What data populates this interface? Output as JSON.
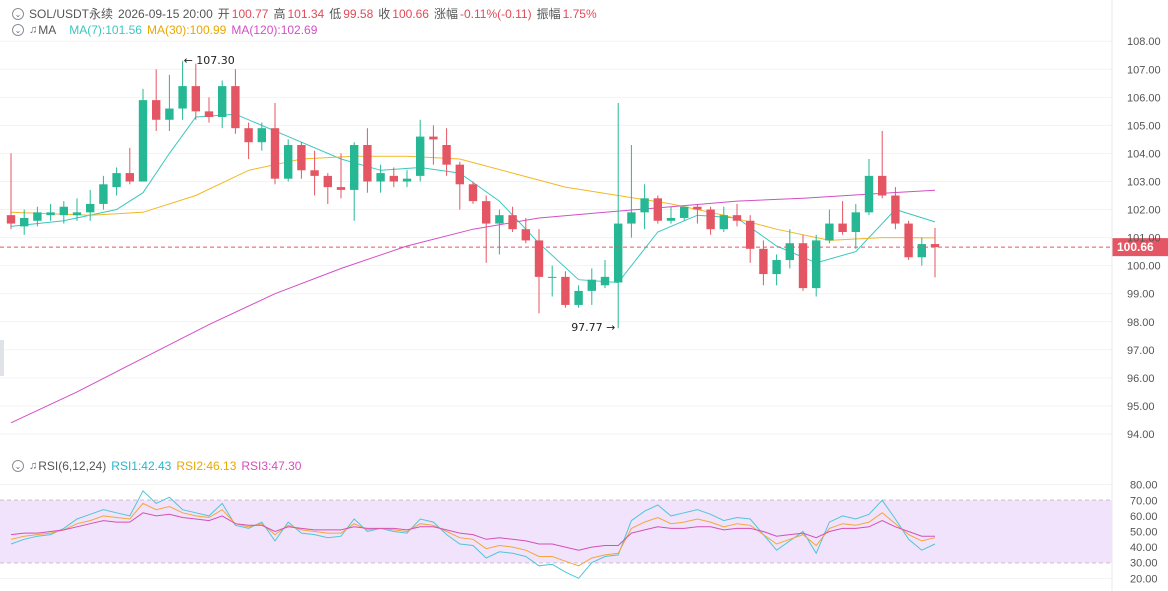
{
  "header": {
    "symbol": "SOL/USDT永续",
    "datetime": "2026-09-15 20:00",
    "open_label": "开",
    "open": "100.77",
    "high_label": "高",
    "high": "101.34",
    "low_label": "低",
    "low": "99.58",
    "close_label": "收",
    "close": "100.66",
    "change_label": "涨幅",
    "change": "-0.11%(-0.11)",
    "amplitude_label": "振幅",
    "amplitude": "1.75%"
  },
  "ma_legend": {
    "label": "MA",
    "ma7": "MA(7):101.56",
    "ma30": "MA(30):100.99",
    "ma120": "MA(120):102.69"
  },
  "rsi_legend": {
    "label": "RSI(6,12,24)",
    "rsi1": "RSI1:42.43",
    "rsi2": "RSI2:46.13",
    "rsi3": "RSI3:47.30"
  },
  "colors": {
    "up": "#26b894",
    "down": "#e45663",
    "ma7": "#3cc6c0",
    "ma30": "#f2b824",
    "ma120": "#d34fc6",
    "rsi1": "#4fc6d6",
    "rsi2": "#f2a63c",
    "rsi3": "#d54fb8",
    "rsi_band": "#f1e3fb"
  },
  "chart_data": [
    {
      "type": "candlestick",
      "title": "SOL/USDT永续",
      "ylim": [
        93.5,
        108.4
      ],
      "yticks": [
        94,
        95,
        96,
        97,
        98,
        99,
        100,
        101,
        102,
        103,
        104,
        105,
        106,
        107,
        108
      ],
      "ytick_labels": [
        "94.00",
        "95.00",
        "96.00",
        "97.00",
        "98.00",
        "99.00",
        "100.00",
        "101.00",
        "102.00",
        "103.00",
        "104.00",
        "105.00",
        "106.00",
        "107.00",
        "108.00"
      ],
      "last_price": 100.66,
      "last_price_label": "100.66",
      "annotations": [
        {
          "text": "← 107.30",
          "value": 107.3,
          "candle": 13
        },
        {
          "text": "97.77 →",
          "value": 97.77,
          "candle": 46
        }
      ],
      "candles": [
        {
          "o": 101.8,
          "h": 104.0,
          "l": 101.3,
          "c": 101.5
        },
        {
          "o": 101.4,
          "h": 102.0,
          "l": 101.1,
          "c": 101.7
        },
        {
          "o": 101.6,
          "h": 102.1,
          "l": 101.4,
          "c": 101.9
        },
        {
          "o": 101.8,
          "h": 102.2,
          "l": 101.6,
          "c": 101.9
        },
        {
          "o": 101.8,
          "h": 102.3,
          "l": 101.5,
          "c": 102.1
        },
        {
          "o": 101.8,
          "h": 102.4,
          "l": 101.6,
          "c": 101.9
        },
        {
          "o": 101.9,
          "h": 102.7,
          "l": 101.6,
          "c": 102.2
        },
        {
          "o": 102.2,
          "h": 103.2,
          "l": 102.0,
          "c": 102.9
        },
        {
          "o": 102.8,
          "h": 103.5,
          "l": 102.5,
          "c": 103.3
        },
        {
          "o": 103.3,
          "h": 104.2,
          "l": 102.9,
          "c": 103.0
        },
        {
          "o": 103.0,
          "h": 106.3,
          "l": 103.0,
          "c": 105.9
        },
        {
          "o": 105.9,
          "h": 107.0,
          "l": 104.8,
          "c": 105.2
        },
        {
          "o": 105.2,
          "h": 106.8,
          "l": 104.8,
          "c": 105.6
        },
        {
          "o": 105.6,
          "h": 107.3,
          "l": 105.2,
          "c": 106.4
        },
        {
          "o": 106.4,
          "h": 107.2,
          "l": 105.2,
          "c": 105.5
        },
        {
          "o": 105.5,
          "h": 106.0,
          "l": 105.1,
          "c": 105.3
        },
        {
          "o": 105.3,
          "h": 106.6,
          "l": 104.9,
          "c": 106.4
        },
        {
          "o": 106.4,
          "h": 107.0,
          "l": 104.7,
          "c": 104.9
        },
        {
          "o": 104.9,
          "h": 105.1,
          "l": 103.8,
          "c": 104.4
        },
        {
          "o": 104.4,
          "h": 105.1,
          "l": 104.1,
          "c": 104.9
        },
        {
          "o": 104.9,
          "h": 105.8,
          "l": 102.9,
          "c": 103.1
        },
        {
          "o": 103.1,
          "h": 104.5,
          "l": 103.0,
          "c": 104.3
        },
        {
          "o": 104.3,
          "h": 104.4,
          "l": 103.1,
          "c": 103.4
        },
        {
          "o": 103.4,
          "h": 104.1,
          "l": 102.5,
          "c": 103.2
        },
        {
          "o": 103.2,
          "h": 103.3,
          "l": 102.2,
          "c": 102.8
        },
        {
          "o": 102.8,
          "h": 104.0,
          "l": 102.4,
          "c": 102.7
        },
        {
          "o": 102.7,
          "h": 104.4,
          "l": 101.6,
          "c": 104.3
        },
        {
          "o": 104.3,
          "h": 104.9,
          "l": 102.6,
          "c": 103.0
        },
        {
          "o": 103.0,
          "h": 103.6,
          "l": 102.6,
          "c": 103.3
        },
        {
          "o": 103.2,
          "h": 103.5,
          "l": 102.8,
          "c": 103.0
        },
        {
          "o": 103.0,
          "h": 103.4,
          "l": 102.8,
          "c": 103.1
        },
        {
          "o": 103.2,
          "h": 105.2,
          "l": 103.0,
          "c": 104.6
        },
        {
          "o": 104.6,
          "h": 105.0,
          "l": 103.6,
          "c": 104.5
        },
        {
          "o": 104.3,
          "h": 104.9,
          "l": 103.2,
          "c": 103.6
        },
        {
          "o": 103.6,
          "h": 103.7,
          "l": 102.0,
          "c": 102.9
        },
        {
          "o": 102.9,
          "h": 103.0,
          "l": 102.2,
          "c": 102.3
        },
        {
          "o": 102.3,
          "h": 102.5,
          "l": 100.1,
          "c": 101.5
        },
        {
          "o": 101.5,
          "h": 102.0,
          "l": 100.4,
          "c": 101.8
        },
        {
          "o": 101.8,
          "h": 102.1,
          "l": 101.2,
          "c": 101.3
        },
        {
          "o": 101.3,
          "h": 101.7,
          "l": 100.8,
          "c": 100.9
        },
        {
          "o": 100.9,
          "h": 101.3,
          "l": 98.3,
          "c": 99.6
        },
        {
          "o": 99.6,
          "h": 100.0,
          "l": 98.9,
          "c": 99.6
        },
        {
          "o": 99.6,
          "h": 99.8,
          "l": 98.5,
          "c": 98.6
        },
        {
          "o": 98.6,
          "h": 99.3,
          "l": 98.5,
          "c": 99.1
        },
        {
          "o": 99.1,
          "h": 99.9,
          "l": 98.6,
          "c": 99.5
        },
        {
          "o": 99.3,
          "h": 100.2,
          "l": 99.2,
          "c": 99.6
        },
        {
          "o": 99.4,
          "h": 105.8,
          "l": 97.77,
          "c": 101.5
        },
        {
          "o": 101.5,
          "h": 104.3,
          "l": 101.0,
          "c": 101.9
        },
        {
          "o": 101.9,
          "h": 102.9,
          "l": 101.3,
          "c": 102.4
        },
        {
          "o": 102.4,
          "h": 102.5,
          "l": 101.5,
          "c": 101.6
        },
        {
          "o": 101.6,
          "h": 102.1,
          "l": 101.5,
          "c": 101.7
        },
        {
          "o": 101.7,
          "h": 102.1,
          "l": 101.6,
          "c": 102.1
        },
        {
          "o": 102.1,
          "h": 102.2,
          "l": 101.5,
          "c": 102.0
        },
        {
          "o": 102.0,
          "h": 102.1,
          "l": 101.1,
          "c": 101.3
        },
        {
          "o": 101.3,
          "h": 102.1,
          "l": 101.2,
          "c": 101.8
        },
        {
          "o": 101.8,
          "h": 102.2,
          "l": 101.4,
          "c": 101.6
        },
        {
          "o": 101.6,
          "h": 101.8,
          "l": 100.1,
          "c": 100.6
        },
        {
          "o": 100.6,
          "h": 100.9,
          "l": 99.3,
          "c": 99.7
        },
        {
          "o": 99.7,
          "h": 100.4,
          "l": 99.3,
          "c": 100.2
        },
        {
          "o": 100.2,
          "h": 101.3,
          "l": 99.9,
          "c": 100.8
        },
        {
          "o": 100.8,
          "h": 101.1,
          "l": 99.1,
          "c": 99.2
        },
        {
          "o": 99.2,
          "h": 101.1,
          "l": 98.9,
          "c": 100.9
        },
        {
          "o": 100.9,
          "h": 102.0,
          "l": 100.8,
          "c": 101.5
        },
        {
          "o": 101.5,
          "h": 102.3,
          "l": 101.1,
          "c": 101.2
        },
        {
          "o": 101.2,
          "h": 102.2,
          "l": 100.6,
          "c": 101.9
        },
        {
          "o": 101.9,
          "h": 103.8,
          "l": 101.8,
          "c": 103.2
        },
        {
          "o": 103.2,
          "h": 104.8,
          "l": 102.4,
          "c": 102.5
        },
        {
          "o": 102.5,
          "h": 102.8,
          "l": 101.3,
          "c": 101.5
        },
        {
          "o": 101.5,
          "h": 101.6,
          "l": 100.2,
          "c": 100.3
        },
        {
          "o": 100.3,
          "h": 101.0,
          "l": 100.0,
          "c": 100.77
        },
        {
          "o": 100.77,
          "h": 101.34,
          "l": 99.58,
          "c": 100.66
        }
      ],
      "ma": {
        "MA(7)": {
          "x": [
            0,
            4,
            8,
            10,
            12,
            14,
            17,
            21,
            25,
            28,
            31,
            34,
            37,
            40,
            43,
            46,
            49,
            52,
            55,
            58,
            61,
            64,
            67,
            70
          ],
          "y": [
            101.4,
            101.6,
            102.0,
            102.6,
            104.0,
            105.3,
            105.4,
            104.6,
            103.8,
            103.4,
            103.5,
            103.3,
            102.3,
            100.8,
            99.5,
            99.4,
            101.2,
            101.8,
            101.7,
            100.7,
            100.1,
            100.5,
            102.0,
            101.56
          ]
        },
        "MA(30)": {
          "x": [
            0,
            6,
            10,
            14,
            18,
            22,
            26,
            30,
            34,
            38,
            42,
            46,
            50,
            54,
            58,
            62,
            66,
            70
          ],
          "y": [
            101.9,
            101.8,
            101.9,
            102.5,
            103.4,
            103.8,
            103.9,
            103.9,
            103.8,
            103.3,
            102.8,
            102.5,
            102.2,
            101.8,
            101.3,
            100.9,
            101.0,
            100.99
          ]
        },
        "MA(120)": {
          "x": [
            0,
            5,
            10,
            15,
            20,
            25,
            30,
            35,
            40,
            45,
            50,
            55,
            60,
            65,
            70
          ],
          "y": [
            94.4,
            95.5,
            96.7,
            97.9,
            99.0,
            99.9,
            100.7,
            101.3,
            101.7,
            101.9,
            102.1,
            102.3,
            102.4,
            102.55,
            102.69
          ]
        }
      }
    },
    {
      "type": "line",
      "title": "RSI(6,12,24)",
      "ylim": [
        17,
        83
      ],
      "yticks": [
        20,
        30,
        40,
        50,
        60,
        70,
        80
      ],
      "ytick_labels": [
        "20.00",
        "30.00",
        "40.00",
        "50.00",
        "60.00",
        "70.00",
        "80.00"
      ],
      "band": [
        30,
        70
      ],
      "series": [
        {
          "name": "RSI1",
          "values": [
            42,
            45,
            47,
            48,
            52,
            58,
            61,
            64,
            62,
            60,
            76,
            68,
            72,
            64,
            62,
            60,
            68,
            54,
            52,
            56,
            44,
            56,
            49,
            48,
            46,
            47,
            58,
            50,
            52,
            50,
            49,
            58,
            56,
            48,
            42,
            41,
            33,
            37,
            36,
            34,
            28,
            29,
            24,
            20,
            30,
            34,
            35,
            57,
            63,
            67,
            60,
            62,
            64,
            61,
            57,
            59,
            58,
            48,
            38,
            44,
            50,
            36,
            56,
            60,
            58,
            61,
            70,
            58,
            45,
            38,
            42
          ]
        },
        {
          "name": "RSI2",
          "values": [
            45,
            47,
            48,
            49,
            51,
            55,
            57,
            60,
            59,
            58,
            68,
            64,
            66,
            62,
            60,
            59,
            64,
            55,
            53,
            55,
            48,
            54,
            51,
            50,
            49,
            49,
            55,
            51,
            52,
            51,
            50,
            55,
            54,
            50,
            46,
            45,
            39,
            41,
            40,
            38,
            34,
            34,
            31,
            28,
            33,
            35,
            36,
            52,
            56,
            59,
            55,
            56,
            58,
            56,
            53,
            55,
            54,
            48,
            42,
            45,
            48,
            41,
            52,
            55,
            54,
            56,
            62,
            55,
            48,
            44,
            46
          ]
        },
        {
          "name": "RSI3",
          "values": [
            48,
            49,
            49,
            50,
            51,
            53,
            55,
            57,
            56,
            56,
            62,
            60,
            61,
            59,
            58,
            57,
            60,
            55,
            54,
            54,
            50,
            53,
            52,
            51,
            51,
            51,
            53,
            52,
            52,
            52,
            51,
            53,
            53,
            51,
            49,
            48,
            45,
            46,
            45,
            44,
            42,
            42,
            40,
            38,
            40,
            41,
            41,
            49,
            51,
            53,
            52,
            52,
            53,
            53,
            51,
            52,
            52,
            50,
            47,
            48,
            49,
            46,
            50,
            52,
            52,
            53,
            57,
            53,
            50,
            47,
            47
          ]
        }
      ]
    }
  ]
}
